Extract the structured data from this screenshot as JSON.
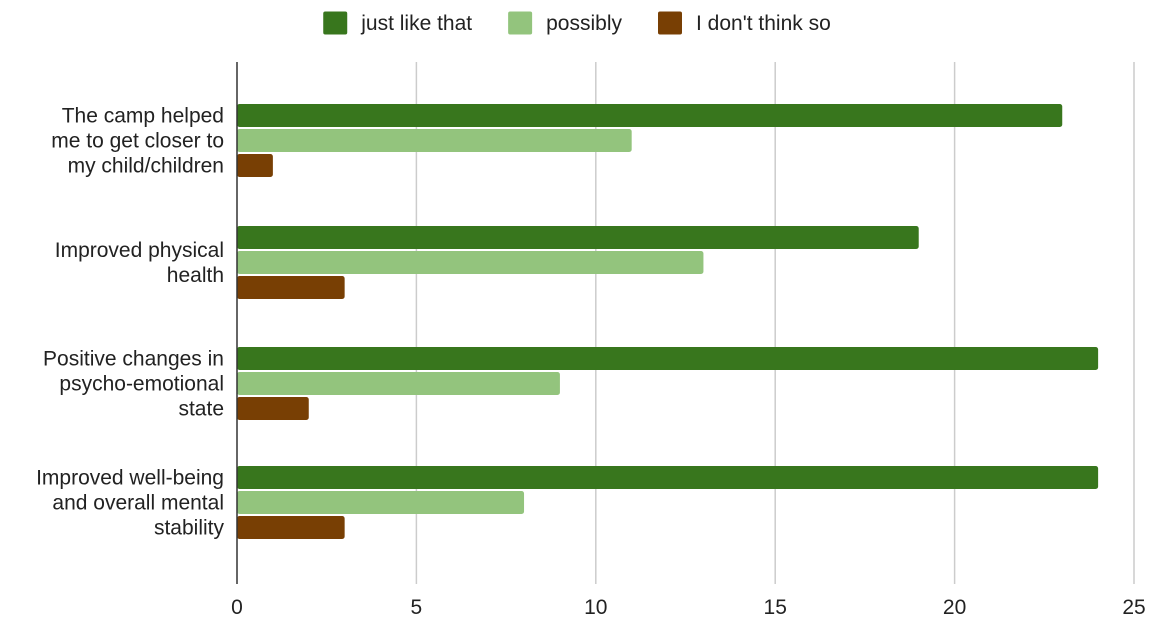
{
  "chart_data": {
    "type": "bar",
    "orientation": "horizontal",
    "title": "",
    "xlabel": "",
    "ylabel": "",
    "categories": [
      [
        "The camp helped",
        "me to get closer to",
        "my child/children"
      ],
      [
        "Improved physical",
        "health"
      ],
      [
        "Positive changes in",
        "psycho-emotional",
        "state"
      ],
      [
        "Improved well-being",
        "and overall mental",
        "stability"
      ]
    ],
    "series": [
      {
        "name": "just like that",
        "color": "#38761d",
        "values": [
          23,
          19,
          24,
          24
        ]
      },
      {
        "name": "possibly",
        "color": "#93c47d",
        "values": [
          11,
          13,
          9,
          8
        ]
      },
      {
        "name": "I don't think so",
        "color": "#783f04",
        "values": [
          1,
          3,
          2,
          3
        ]
      }
    ],
    "xlim": [
      0,
      25
    ],
    "xticks": [
      0,
      5,
      10,
      15,
      20,
      25
    ],
    "grid": true,
    "legend_position": "top"
  }
}
